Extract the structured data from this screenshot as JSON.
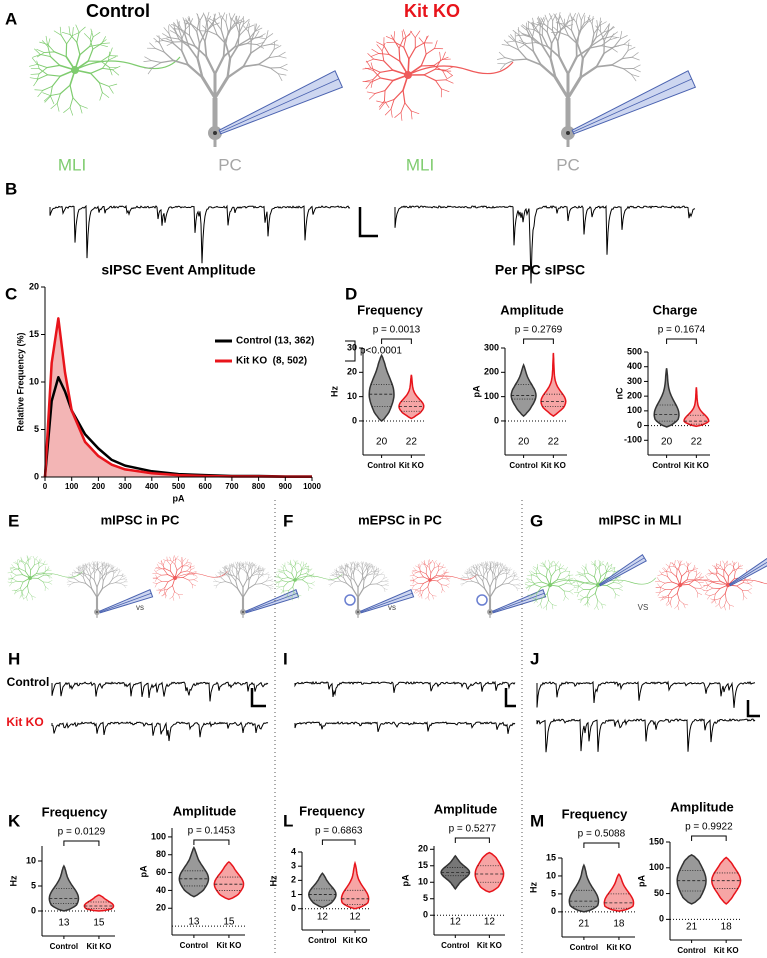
{
  "figure": {
    "panel_labels": [
      "A",
      "B",
      "C",
      "D",
      "E",
      "F",
      "G",
      "H",
      "I",
      "J",
      "K",
      "L",
      "M"
    ],
    "illustration": {
      "control": "Control",
      "kit_ko": "Kit KO",
      "mli": "MLI",
      "pc": "PC"
    },
    "per_pc_title": "Per PC sIPSC",
    "sections": [
      "mIPSC in PC",
      "mEPSC in PC",
      "mIPSC in MLI"
    ],
    "comparisons": [
      "vs",
      "vs",
      "VS"
    ],
    "trace_labels": [
      "Control",
      "Kit KO"
    ]
  },
  "chart_data": [
    {
      "type": "line",
      "title": "sIPSC Event Amplitude",
      "xlabel": "pA",
      "ylabel": "Relative Frequency (%)",
      "x": [
        0,
        25,
        50,
        75,
        100,
        150,
        200,
        250,
        300,
        400,
        500,
        600,
        700,
        800,
        900,
        1000
      ],
      "series": [
        {
          "name": "Control (13, 362)",
          "color": "#000000",
          "values": [
            0,
            8,
            10.5,
            9,
            7,
            4.5,
            3,
            1.8,
            1.2,
            0.6,
            0.3,
            0.2,
            0.1,
            0.1,
            0.05,
            0.05
          ]
        },
        {
          "name": "Kit KO  (8, 502)",
          "color": "#e8141b",
          "fill": "#f0a3a3",
          "values": [
            0,
            12,
            16.7,
            11,
            7,
            3.7,
            2.2,
            1.3,
            0.8,
            0.4,
            0.2,
            0.1,
            0.05,
            0.05,
            0.02,
            0.02
          ]
        }
      ],
      "xlim": [
        0,
        1000
      ],
      "xticks": [
        0,
        100,
        200,
        300,
        400,
        500,
        600,
        700,
        800,
        900,
        1000
      ],
      "ylim": [
        0,
        20
      ],
      "yticks": [
        0,
        5,
        10,
        15,
        20
      ],
      "annotation": "p<0.0001"
    },
    {
      "type": "violin",
      "title": "Frequency",
      "ylabel": "Hz",
      "categories": [
        "Control",
        "Kit KO"
      ],
      "groups": [
        {
          "min": 0,
          "q1": 6,
          "median": 11,
          "q3": 15,
          "max": 27
        },
        {
          "min": 1,
          "q1": 4,
          "median": 6,
          "q3": 8,
          "max": 19
        }
      ],
      "n": [
        20,
        22
      ],
      "p_value": "p = 0.0013",
      "ylim": [
        -14,
        30
      ],
      "yticks": [
        0,
        10,
        20,
        30
      ],
      "colors": [
        "#333333",
        "#e8141b"
      ],
      "fills": [
        "#999999",
        "#f6a5a5"
      ]
    },
    {
      "type": "violin",
      "title": "Amplitude",
      "ylabel": "pA",
      "categories": [
        "Control",
        "Kit KO"
      ],
      "groups": [
        {
          "min": 20,
          "q1": 90,
          "median": 105,
          "q3": 150,
          "max": 230
        },
        {
          "min": 20,
          "q1": 60,
          "median": 80,
          "q3": 110,
          "max": 280
        }
      ],
      "n": [
        20,
        22
      ],
      "p_value": "p = 0.2769",
      "ylim": [
        -140,
        300
      ],
      "yticks": [
        0,
        100,
        200,
        300
      ],
      "colors": [
        "#333333",
        "#e8141b"
      ],
      "fills": [
        "#999999",
        "#f6a5a5"
      ]
    },
    {
      "type": "violin",
      "title": "Charge",
      "ylabel": "nC",
      "categories": [
        "Control",
        "Kit KO"
      ],
      "groups": [
        {
          "min": -10,
          "q1": 30,
          "median": 75,
          "q3": 140,
          "max": 390
        },
        {
          "min": -5,
          "q1": 10,
          "median": 30,
          "q3": 70,
          "max": 260
        }
      ],
      "n": [
        20,
        22
      ],
      "p_value": "p = 0.1674",
      "ylim": [
        -200,
        500
      ],
      "yticks": [
        -100,
        0,
        100,
        200,
        300,
        400,
        500
      ],
      "colors": [
        "#333333",
        "#e8141b"
      ],
      "fills": [
        "#999999",
        "#f6a5a5"
      ]
    },
    {
      "type": "violin",
      "title": "Frequency",
      "ylabel": "Hz",
      "categories": [
        "Control",
        "Kit KO"
      ],
      "groups": [
        {
          "min": 0,
          "q1": 1.5,
          "median": 2.5,
          "q3": 4.5,
          "max": 9
        },
        {
          "min": 0,
          "q1": 0.5,
          "median": 1,
          "q3": 1.8,
          "max": 3.2
        }
      ],
      "n": [
        13,
        15
      ],
      "p_value": "p = 0.0129",
      "ylim": [
        -5,
        13
      ],
      "yticks": [
        0,
        5,
        10
      ],
      "colors": [
        "#333333",
        "#e8141b"
      ],
      "fills": [
        "#999999",
        "#f6a5a5"
      ]
    },
    {
      "type": "violin",
      "title": "Amplitude",
      "ylabel": "pA",
      "categories": [
        "Control",
        "Kit KO"
      ],
      "groups": [
        {
          "min": 33,
          "q1": 45,
          "median": 53,
          "q3": 62,
          "max": 88
        },
        {
          "min": 30,
          "q1": 40,
          "median": 47,
          "q3": 55,
          "max": 72
        }
      ],
      "n": [
        13,
        15
      ],
      "p_value": "p = 0.1453",
      "ylim": [
        -10,
        110
      ],
      "yticks": [
        20,
        40,
        60,
        80,
        100
      ],
      "colors": [
        "#333333",
        "#e8141b"
      ],
      "fills": [
        "#999999",
        "#f6a5a5"
      ]
    },
    {
      "type": "violin",
      "title": "Frequency",
      "ylabel": "Hz",
      "categories": [
        "Control",
        "Kit KO"
      ],
      "groups": [
        {
          "min": 0.1,
          "q1": 0.6,
          "median": 1,
          "q3": 1.4,
          "max": 2.5
        },
        {
          "min": 0,
          "q1": 0.3,
          "median": 0.7,
          "q3": 1.3,
          "max": 3.2
        }
      ],
      "n": [
        12,
        12
      ],
      "p_value": "p = 0.6863",
      "ylim": [
        -1.5,
        4
      ],
      "yticks": [
        0,
        1,
        2,
        3,
        4
      ],
      "colors": [
        "#333333",
        "#e8141b"
      ],
      "fills": [
        "#999999",
        "#f6a5a5"
      ]
    },
    {
      "type": "violin",
      "title": "Amplitude",
      "ylabel": "pA",
      "categories": [
        "Control",
        "Kit KO"
      ],
      "groups": [
        {
          "min": 8,
          "q1": 12,
          "median": 13,
          "q3": 14.5,
          "max": 18
        },
        {
          "min": 7,
          "q1": 10,
          "median": 12.5,
          "q3": 15,
          "max": 19
        }
      ],
      "n": [
        12,
        12
      ],
      "p_value": "p = 0.5277",
      "ylim": [
        -6,
        21
      ],
      "yticks": [
        0,
        5,
        10,
        15,
        20
      ],
      "colors": [
        "#333333",
        "#e8141b"
      ],
      "fills": [
        "#777777",
        "#f6a5a5"
      ]
    },
    {
      "type": "violin",
      "title": "Frequency",
      "ylabel": "Hz",
      "categories": [
        "Control",
        "Kit KO"
      ],
      "groups": [
        {
          "min": 0,
          "q1": 1.5,
          "median": 3,
          "q3": 6,
          "max": 13
        },
        {
          "min": 0.2,
          "q1": 1,
          "median": 2.5,
          "q3": 5,
          "max": 10.5
        }
      ],
      "n": [
        21,
        18
      ],
      "p_value": "p = 0.5088",
      "ylim": [
        -7,
        15
      ],
      "yticks": [
        0,
        5,
        10,
        15
      ],
      "colors": [
        "#333333",
        "#e8141b"
      ],
      "fills": [
        "#999999",
        "#f6a5a5"
      ]
    },
    {
      "type": "violin",
      "title": "Amplitude",
      "ylabel": "pA",
      "categories": [
        "Control",
        "Kit KO"
      ],
      "groups": [
        {
          "min": 30,
          "q1": 55,
          "median": 75,
          "q3": 95,
          "max": 125
        },
        {
          "min": 30,
          "q1": 60,
          "median": 75,
          "q3": 90,
          "max": 120
        }
      ],
      "n": [
        21,
        18
      ],
      "p_value": "p = 0.9922",
      "ylim": [
        -40,
        150
      ],
      "yticks": [
        0,
        50,
        100,
        150
      ],
      "colors": [
        "#333333",
        "#e8141b"
      ],
      "fills": [
        "#999999",
        "#f6a5a5"
      ]
    }
  ]
}
